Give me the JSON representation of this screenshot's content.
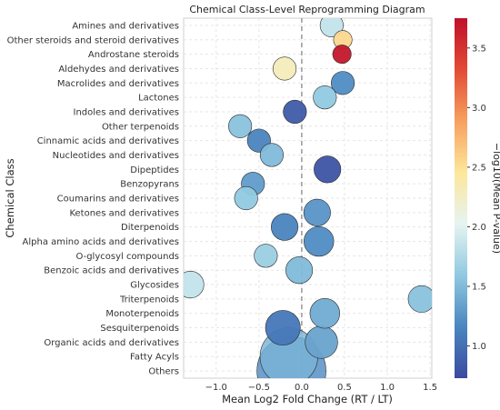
{
  "chart_data": {
    "type": "scatter",
    "title": "Chemical Class-Level Reprogramming Diagram",
    "xlabel": "Mean Log2 Fold Change (RT / LT)",
    "ylabel": "Chemical Class",
    "xlim": [
      -1.38,
      1.52
    ],
    "x_ticks": [
      -1.0,
      -0.5,
      0.0,
      0.5,
      1.0,
      1.5
    ],
    "x_tick_labels": [
      "−1.0",
      "−0.5",
      "0.0",
      "0.5",
      "1.0",
      "1.5"
    ],
    "grid": true,
    "reference_line": {
      "x": 0,
      "style": "dashed"
    },
    "colorbar": {
      "label": "−log10(Mean P-value)",
      "range": [
        0.73,
        3.75
      ],
      "ticks": [
        1.0,
        1.5,
        2.0,
        2.5,
        3.0,
        3.5
      ],
      "tick_labels": [
        "1.0",
        "1.5",
        "2.0",
        "2.5",
        "3.0",
        "3.5"
      ],
      "colormap": "RdYlBu_r",
      "stops": [
        "#3b4aa0",
        "#4a86c0",
        "#90c9e0",
        "#e6f4f1",
        "#fde79b",
        "#f7a05f",
        "#e24b35",
        "#c0102a"
      ]
    },
    "categories": [
      "Amines and derivatives",
      "Other steroids and steroid derivatives",
      "Androstane steroids",
      "Aldehydes and derivatives",
      "Macrolides and derivatives",
      "Lactones",
      "Indoles and derivatives",
      "Other terpenoids",
      "Cinnamic acids and derivatives",
      "Nucleotides and derivatives",
      "Dipeptides",
      "Benzopyrans",
      "Coumarins and derivatives",
      "Ketones and derivatives",
      "Diterpenoids",
      "Alpha amino acids and derivatives",
      "O-glycosyl compounds",
      "Benzoic acids and derivatives",
      "Glycosides",
      "Triterpenoids",
      "Monoterpenoids",
      "Sesquiterpenoids",
      "Organic acids and derivatives",
      "Fatty Acyls",
      "Others"
    ],
    "points": [
      {
        "category": "Amines and derivatives",
        "x": 0.35,
        "neglog10p": 1.85,
        "count": 2
      },
      {
        "category": "Other steroids and steroid derivatives",
        "x": 0.48,
        "neglog10p": 2.55,
        "count": 1
      },
      {
        "category": "Androstane steroids",
        "x": 0.47,
        "neglog10p": 3.7,
        "count": 1
      },
      {
        "category": "Aldehydes and derivatives",
        "x": -0.2,
        "neglog10p": 2.3,
        "count": 2
      },
      {
        "category": "Macrolides and derivatives",
        "x": 0.48,
        "neglog10p": 1.2,
        "count": 2
      },
      {
        "category": "Lactones",
        "x": 0.27,
        "neglog10p": 1.6,
        "count": 2
      },
      {
        "category": "Indoles and derivatives",
        "x": -0.08,
        "neglog10p": 0.85,
        "count": 2
      },
      {
        "category": "Other terpenoids",
        "x": -0.72,
        "neglog10p": 1.55,
        "count": 2
      },
      {
        "category": "Cinnamic acids and derivatives",
        "x": -0.5,
        "neglog10p": 1.15,
        "count": 2
      },
      {
        "category": "Nucleotides and derivatives",
        "x": -0.35,
        "neglog10p": 1.5,
        "count": 2
      },
      {
        "category": "Dipeptides",
        "x": 0.3,
        "neglog10p": 0.8,
        "count": 3
      },
      {
        "category": "Benzopyrans",
        "x": -0.57,
        "neglog10p": 1.3,
        "count": 2
      },
      {
        "category": "Coumarins and derivatives",
        "x": -0.65,
        "neglog10p": 1.6,
        "count": 2
      },
      {
        "category": "Ketones and derivatives",
        "x": 0.18,
        "neglog10p": 1.25,
        "count": 3
      },
      {
        "category": "Diterpenoids",
        "x": -0.2,
        "neglog10p": 1.15,
        "count": 3
      },
      {
        "category": "Alpha amino acids and derivatives",
        "x": 0.2,
        "neglog10p": 1.2,
        "count": 4
      },
      {
        "category": "O-glycosyl compounds",
        "x": -0.42,
        "neglog10p": 1.65,
        "count": 2
      },
      {
        "category": "Benzoic acids and derivatives",
        "x": -0.03,
        "neglog10p": 1.5,
        "count": 3
      },
      {
        "category": "Glycosides",
        "x": -1.3,
        "neglog10p": 1.85,
        "count": 3
      },
      {
        "category": "Triterpenoids",
        "x": 1.4,
        "neglog10p": 1.55,
        "count": 3
      },
      {
        "category": "Monoterpenoids",
        "x": 0.27,
        "neglog10p": 1.4,
        "count": 4
      },
      {
        "category": "Sesquiterpenoids",
        "x": -0.22,
        "neglog10p": 1.05,
        "count": 6
      },
      {
        "category": "Organic acids and derivatives",
        "x": 0.23,
        "neglog10p": 1.35,
        "count": 5
      },
      {
        "category": "Fatty Acyls",
        "x": -0.15,
        "neglog10p": 1.45,
        "count": 20
      },
      {
        "category": "Others",
        "x": -0.12,
        "neglog10p": 1.2,
        "count": 30
      }
    ]
  }
}
